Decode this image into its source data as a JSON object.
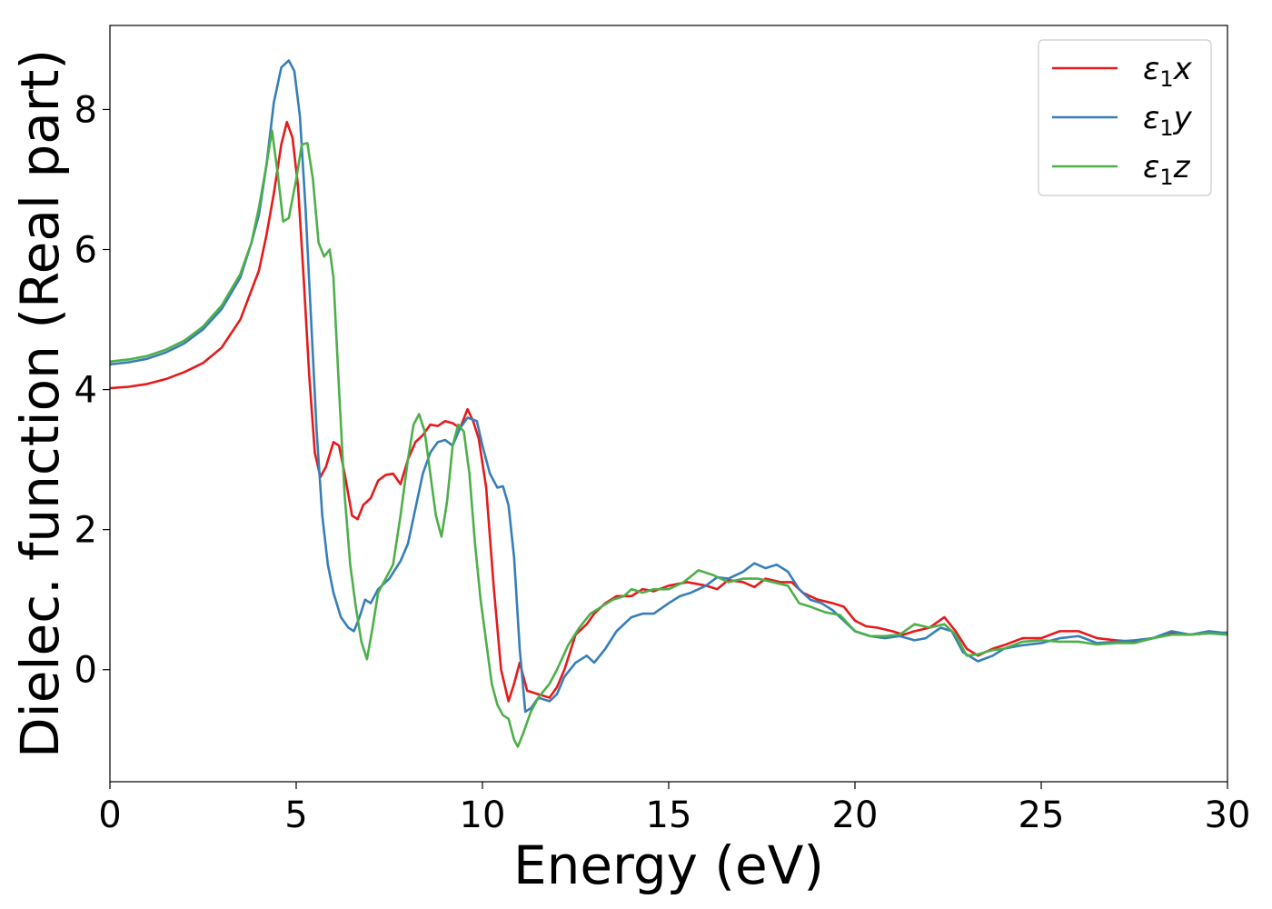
{
  "chart_data": {
    "type": "line",
    "title": "",
    "xlabel": "Energy (eV)",
    "ylabel": "Dielec. function (Real part)",
    "xlim": [
      0,
      30
    ],
    "ylim": [
      -1.6,
      9.2
    ],
    "xticks": [
      0,
      5,
      10,
      15,
      20,
      25,
      30
    ],
    "yticks": [
      0,
      2,
      4,
      6,
      8
    ],
    "grid": false,
    "legend_position": "top-right",
    "series": [
      {
        "name": "ε₁x",
        "legend_symbol": "ε",
        "legend_sub": "1",
        "legend_suffix": "x",
        "color": "#e41a1c",
        "points": [
          [
            0,
            4.02
          ],
          [
            0.5,
            4.04
          ],
          [
            1,
            4.08
          ],
          [
            1.5,
            4.15
          ],
          [
            2,
            4.25
          ],
          [
            2.5,
            4.38
          ],
          [
            3,
            4.6
          ],
          [
            3.5,
            5.0
          ],
          [
            4,
            5.7
          ],
          [
            4.2,
            6.2
          ],
          [
            4.4,
            6.8
          ],
          [
            4.6,
            7.5
          ],
          [
            4.75,
            7.82
          ],
          [
            4.9,
            7.6
          ],
          [
            5.05,
            6.9
          ],
          [
            5.2,
            5.6
          ],
          [
            5.35,
            4.2
          ],
          [
            5.5,
            3.1
          ],
          [
            5.65,
            2.75
          ],
          [
            5.8,
            2.9
          ],
          [
            6.0,
            3.25
          ],
          [
            6.15,
            3.2
          ],
          [
            6.3,
            2.8
          ],
          [
            6.5,
            2.2
          ],
          [
            6.65,
            2.15
          ],
          [
            6.8,
            2.35
          ],
          [
            7.0,
            2.45
          ],
          [
            7.2,
            2.7
          ],
          [
            7.4,
            2.78
          ],
          [
            7.6,
            2.8
          ],
          [
            7.8,
            2.65
          ],
          [
            8.0,
            3.0
          ],
          [
            8.2,
            3.25
          ],
          [
            8.4,
            3.35
          ],
          [
            8.6,
            3.5
          ],
          [
            8.8,
            3.48
          ],
          [
            9.0,
            3.55
          ],
          [
            9.2,
            3.52
          ],
          [
            9.4,
            3.45
          ],
          [
            9.6,
            3.72
          ],
          [
            9.75,
            3.55
          ],
          [
            9.9,
            3.3
          ],
          [
            10.1,
            2.6
          ],
          [
            10.3,
            1.2
          ],
          [
            10.5,
            0.0
          ],
          [
            10.7,
            -0.45
          ],
          [
            10.85,
            -0.2
          ],
          [
            11.0,
            0.1
          ],
          [
            11.2,
            -0.3
          ],
          [
            11.5,
            -0.35
          ],
          [
            11.8,
            -0.4
          ],
          [
            12.0,
            -0.25
          ],
          [
            12.2,
            0.0
          ],
          [
            12.5,
            0.5
          ],
          [
            12.8,
            0.65
          ],
          [
            13.0,
            0.8
          ],
          [
            13.3,
            0.95
          ],
          [
            13.6,
            1.05
          ],
          [
            14.0,
            1.05
          ],
          [
            14.3,
            1.15
          ],
          [
            14.6,
            1.12
          ],
          [
            15.0,
            1.2
          ],
          [
            15.5,
            1.25
          ],
          [
            16.0,
            1.2
          ],
          [
            16.3,
            1.15
          ],
          [
            16.6,
            1.28
          ],
          [
            17.0,
            1.25
          ],
          [
            17.3,
            1.18
          ],
          [
            17.6,
            1.3
          ],
          [
            18.0,
            1.25
          ],
          [
            18.3,
            1.25
          ],
          [
            18.6,
            1.1
          ],
          [
            19.0,
            1.0
          ],
          [
            19.4,
            0.95
          ],
          [
            19.7,
            0.9
          ],
          [
            20.0,
            0.7
          ],
          [
            20.3,
            0.62
          ],
          [
            20.6,
            0.6
          ],
          [
            21.0,
            0.55
          ],
          [
            21.3,
            0.5
          ],
          [
            21.6,
            0.55
          ],
          [
            22.0,
            0.6
          ],
          [
            22.4,
            0.75
          ],
          [
            22.7,
            0.55
          ],
          [
            23.0,
            0.3
          ],
          [
            23.3,
            0.2
          ],
          [
            23.7,
            0.3
          ],
          [
            24.0,
            0.35
          ],
          [
            24.5,
            0.45
          ],
          [
            25.0,
            0.45
          ],
          [
            25.5,
            0.55
          ],
          [
            26.0,
            0.55
          ],
          [
            26.5,
            0.45
          ],
          [
            27.0,
            0.42
          ],
          [
            27.5,
            0.4
          ],
          [
            28.0,
            0.45
          ],
          [
            28.5,
            0.52
          ],
          [
            29.0,
            0.5
          ],
          [
            29.5,
            0.52
          ],
          [
            30.0,
            0.53
          ]
        ]
      },
      {
        "name": "ε₁y",
        "legend_symbol": "ε",
        "legend_sub": "1",
        "legend_suffix": "y",
        "color": "#377eb8",
        "points": [
          [
            0,
            4.36
          ],
          [
            0.5,
            4.39
          ],
          [
            1,
            4.44
          ],
          [
            1.5,
            4.53
          ],
          [
            2,
            4.66
          ],
          [
            2.5,
            4.86
          ],
          [
            3,
            5.15
          ],
          [
            3.5,
            5.6
          ],
          [
            3.8,
            6.1
          ],
          [
            4.0,
            6.5
          ],
          [
            4.2,
            7.2
          ],
          [
            4.4,
            8.1
          ],
          [
            4.6,
            8.6
          ],
          [
            4.8,
            8.7
          ],
          [
            4.95,
            8.55
          ],
          [
            5.1,
            7.9
          ],
          [
            5.25,
            6.6
          ],
          [
            5.4,
            5.0
          ],
          [
            5.55,
            3.4
          ],
          [
            5.7,
            2.2
          ],
          [
            5.85,
            1.5
          ],
          [
            6.0,
            1.1
          ],
          [
            6.2,
            0.75
          ],
          [
            6.4,
            0.6
          ],
          [
            6.55,
            0.55
          ],
          [
            6.7,
            0.75
          ],
          [
            6.85,
            1.0
          ],
          [
            7.0,
            0.95
          ],
          [
            7.2,
            1.15
          ],
          [
            7.5,
            1.3
          ],
          [
            7.8,
            1.55
          ],
          [
            8.0,
            1.8
          ],
          [
            8.2,
            2.3
          ],
          [
            8.4,
            2.8
          ],
          [
            8.6,
            3.1
          ],
          [
            8.8,
            3.25
          ],
          [
            9.0,
            3.28
          ],
          [
            9.2,
            3.2
          ],
          [
            9.4,
            3.45
          ],
          [
            9.6,
            3.6
          ],
          [
            9.85,
            3.55
          ],
          [
            10.0,
            3.2
          ],
          [
            10.2,
            2.8
          ],
          [
            10.4,
            2.6
          ],
          [
            10.55,
            2.62
          ],
          [
            10.7,
            2.35
          ],
          [
            10.85,
            1.6
          ],
          [
            11.0,
            0.3
          ],
          [
            11.15,
            -0.6
          ],
          [
            11.3,
            -0.55
          ],
          [
            11.5,
            -0.4
          ],
          [
            11.8,
            -0.45
          ],
          [
            12.0,
            -0.35
          ],
          [
            12.2,
            -0.1
          ],
          [
            12.5,
            0.1
          ],
          [
            12.8,
            0.2
          ],
          [
            13.0,
            0.1
          ],
          [
            13.3,
            0.3
          ],
          [
            13.6,
            0.55
          ],
          [
            14.0,
            0.75
          ],
          [
            14.3,
            0.8
          ],
          [
            14.6,
            0.8
          ],
          [
            15.0,
            0.95
          ],
          [
            15.3,
            1.05
          ],
          [
            15.6,
            1.1
          ],
          [
            16.0,
            1.2
          ],
          [
            16.3,
            1.32
          ],
          [
            16.6,
            1.3
          ],
          [
            17.0,
            1.4
          ],
          [
            17.3,
            1.52
          ],
          [
            17.6,
            1.45
          ],
          [
            17.9,
            1.5
          ],
          [
            18.2,
            1.4
          ],
          [
            18.5,
            1.15
          ],
          [
            18.8,
            1.0
          ],
          [
            19.1,
            0.95
          ],
          [
            19.4,
            0.85
          ],
          [
            19.7,
            0.7
          ],
          [
            20.0,
            0.55
          ],
          [
            20.4,
            0.48
          ],
          [
            20.8,
            0.45
          ],
          [
            21.2,
            0.48
          ],
          [
            21.6,
            0.42
          ],
          [
            21.9,
            0.45
          ],
          [
            22.3,
            0.6
          ],
          [
            22.6,
            0.55
          ],
          [
            22.9,
            0.25
          ],
          [
            23.3,
            0.12
          ],
          [
            23.7,
            0.2
          ],
          [
            24.0,
            0.3
          ],
          [
            24.5,
            0.35
          ],
          [
            25.0,
            0.38
          ],
          [
            25.5,
            0.45
          ],
          [
            26.0,
            0.48
          ],
          [
            26.5,
            0.38
          ],
          [
            27.0,
            0.4
          ],
          [
            27.5,
            0.42
          ],
          [
            28.0,
            0.45
          ],
          [
            28.5,
            0.55
          ],
          [
            29.0,
            0.5
          ],
          [
            29.5,
            0.55
          ],
          [
            30.0,
            0.52
          ]
        ]
      },
      {
        "name": "ε₁z",
        "legend_symbol": "ε",
        "legend_sub": "1",
        "legend_suffix": "z",
        "color": "#4daf4a",
        "points": [
          [
            0,
            4.4
          ],
          [
            0.5,
            4.43
          ],
          [
            1,
            4.48
          ],
          [
            1.5,
            4.57
          ],
          [
            2,
            4.7
          ],
          [
            2.5,
            4.9
          ],
          [
            3,
            5.2
          ],
          [
            3.5,
            5.65
          ],
          [
            3.8,
            6.1
          ],
          [
            4.0,
            6.6
          ],
          [
            4.2,
            7.2
          ],
          [
            4.35,
            7.7
          ],
          [
            4.5,
            7.1
          ],
          [
            4.65,
            6.4
          ],
          [
            4.8,
            6.45
          ],
          [
            5.0,
            7.0
          ],
          [
            5.15,
            7.5
          ],
          [
            5.3,
            7.52
          ],
          [
            5.45,
            7.0
          ],
          [
            5.6,
            6.1
          ],
          [
            5.75,
            5.9
          ],
          [
            5.9,
            6.0
          ],
          [
            6.0,
            5.6
          ],
          [
            6.15,
            4.0
          ],
          [
            6.3,
            2.5
          ],
          [
            6.45,
            1.5
          ],
          [
            6.6,
            0.9
          ],
          [
            6.75,
            0.4
          ],
          [
            6.9,
            0.15
          ],
          [
            7.05,
            0.6
          ],
          [
            7.2,
            1.1
          ],
          [
            7.4,
            1.3
          ],
          [
            7.6,
            1.5
          ],
          [
            7.8,
            2.2
          ],
          [
            8.0,
            3.0
          ],
          [
            8.15,
            3.5
          ],
          [
            8.3,
            3.65
          ],
          [
            8.45,
            3.4
          ],
          [
            8.6,
            2.8
          ],
          [
            8.75,
            2.2
          ],
          [
            8.9,
            1.9
          ],
          [
            9.05,
            2.4
          ],
          [
            9.2,
            3.2
          ],
          [
            9.35,
            3.5
          ],
          [
            9.5,
            3.4
          ],
          [
            9.65,
            2.8
          ],
          [
            9.8,
            1.8
          ],
          [
            9.95,
            1.0
          ],
          [
            10.1,
            0.4
          ],
          [
            10.25,
            -0.2
          ],
          [
            10.4,
            -0.5
          ],
          [
            10.55,
            -0.65
          ],
          [
            10.7,
            -0.7
          ],
          [
            10.85,
            -1.0
          ],
          [
            10.95,
            -1.1
          ],
          [
            11.1,
            -0.9
          ],
          [
            11.3,
            -0.6
          ],
          [
            11.5,
            -0.4
          ],
          [
            11.8,
            -0.2
          ],
          [
            12.0,
            0.0
          ],
          [
            12.3,
            0.35
          ],
          [
            12.6,
            0.6
          ],
          [
            12.9,
            0.8
          ],
          [
            13.2,
            0.9
          ],
          [
            13.5,
            1.0
          ],
          [
            13.8,
            1.05
          ],
          [
            14.0,
            1.15
          ],
          [
            14.3,
            1.1
          ],
          [
            14.6,
            1.15
          ],
          [
            15.0,
            1.15
          ],
          [
            15.4,
            1.25
          ],
          [
            15.8,
            1.42
          ],
          [
            16.2,
            1.35
          ],
          [
            16.6,
            1.25
          ],
          [
            17.0,
            1.3
          ],
          [
            17.4,
            1.3
          ],
          [
            17.8,
            1.25
          ],
          [
            18.2,
            1.2
          ],
          [
            18.5,
            0.95
          ],
          [
            18.8,
            0.9
          ],
          [
            19.2,
            0.82
          ],
          [
            19.6,
            0.78
          ],
          [
            20.0,
            0.55
          ],
          [
            20.4,
            0.48
          ],
          [
            20.8,
            0.48
          ],
          [
            21.2,
            0.5
          ],
          [
            21.6,
            0.65
          ],
          [
            22.0,
            0.6
          ],
          [
            22.4,
            0.65
          ],
          [
            22.7,
            0.5
          ],
          [
            23.0,
            0.2
          ],
          [
            23.3,
            0.22
          ],
          [
            23.7,
            0.28
          ],
          [
            24.0,
            0.3
          ],
          [
            24.5,
            0.4
          ],
          [
            25.0,
            0.42
          ],
          [
            25.5,
            0.4
          ],
          [
            26.0,
            0.4
          ],
          [
            26.5,
            0.36
          ],
          [
            27.0,
            0.38
          ],
          [
            27.5,
            0.38
          ],
          [
            28.0,
            0.45
          ],
          [
            28.5,
            0.5
          ],
          [
            29.0,
            0.5
          ],
          [
            29.5,
            0.52
          ],
          [
            30.0,
            0.5
          ]
        ]
      }
    ]
  }
}
